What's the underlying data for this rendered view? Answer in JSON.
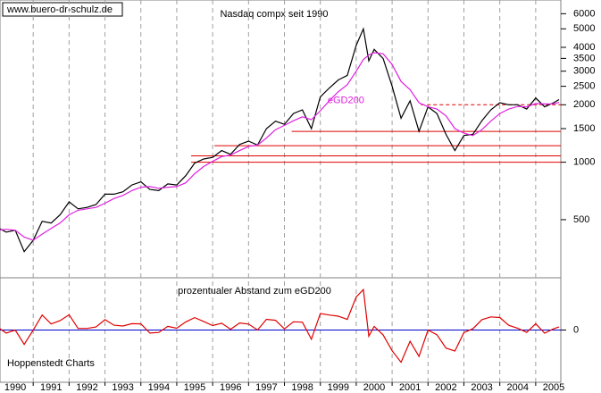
{
  "chart_data": [
    {
      "type": "line",
      "title": "Nasdaq compx seit 1990",
      "source": "www.buero-dr-schulz.de",
      "log_scale": true,
      "grid": true,
      "xlim": [
        1990.075,
        2005.7
      ],
      "ylim": [
        248,
        7080
      ],
      "yticks": [
        500,
        1000,
        1500,
        2000,
        2500,
        3000,
        3500,
        4000,
        5000,
        6000
      ],
      "x": [
        1990,
        1990.25,
        1990.5,
        1990.75,
        1991,
        1991.25,
        1991.5,
        1991.75,
        1992,
        1992.25,
        1992.5,
        1992.75,
        1993,
        1993.25,
        1993.5,
        1993.75,
        1994,
        1994.25,
        1994.5,
        1994.75,
        1995,
        1995.25,
        1995.5,
        1995.75,
        1996,
        1996.25,
        1996.5,
        1996.75,
        1997,
        1997.25,
        1997.5,
        1997.75,
        1998,
        1998.25,
        1998.5,
        1998.75,
        1999,
        1999.25,
        1999.5,
        1999.75,
        2000,
        2000.2,
        2000.35,
        2000.5,
        2000.75,
        2001,
        2001.25,
        2001.5,
        2001.75,
        2002,
        2002.25,
        2002.5,
        2002.75,
        2003,
        2003.25,
        2003.5,
        2003.75,
        2004,
        2004.25,
        2004.5,
        2004.75,
        2005,
        2005.25,
        2005.5,
        2005.65
      ],
      "series": [
        {
          "color": "#000000",
          "values": [
            455,
            430,
            440,
            340,
            390,
            490,
            480,
            530,
            620,
            570,
            580,
            600,
            680,
            680,
            700,
            760,
            790,
            720,
            710,
            770,
            760,
            850,
            990,
            1040,
            1060,
            1150,
            1100,
            1240,
            1290,
            1230,
            1500,
            1640,
            1580,
            1800,
            1880,
            1500,
            2200,
            2450,
            2700,
            2850,
            4100,
            5000,
            3400,
            3900,
            3500,
            2500,
            1700,
            2100,
            1450,
            1950,
            1800,
            1400,
            1150,
            1380,
            1400,
            1650,
            1880,
            2050,
            2000,
            2000,
            1900,
            2170,
            1950,
            2050,
            2130
          ]
        },
        {
          "name": "eGD200",
          "color": "#e020e0",
          "values": [
            440,
            445,
            440,
            405,
            390,
            420,
            450,
            480,
            530,
            560,
            570,
            580,
            610,
            645,
            670,
            710,
            740,
            745,
            730,
            740,
            745,
            780,
            870,
            950,
            1010,
            1070,
            1090,
            1150,
            1210,
            1230,
            1340,
            1480,
            1560,
            1650,
            1730,
            1670,
            1860,
            2100,
            2340,
            2550,
            3000,
            3450,
            3650,
            3750,
            3700,
            3250,
            2650,
            2400,
            2050,
            1950,
            1900,
            1750,
            1500,
            1420,
            1380,
            1480,
            1640,
            1800,
            1900,
            1960,
            1950,
            2030,
            2020,
            2020,
            2060
          ]
        }
      ],
      "hlines": [
        {
          "value": 2000,
          "from": 2001.8,
          "dashed": true,
          "color": "#e00000"
        },
        {
          "value": 1450,
          "from": 1998.2,
          "dashed": false,
          "color": "#e00000"
        },
        {
          "value": 1220,
          "from": 1996.05,
          "dashed": false,
          "color": "#e00000"
        },
        {
          "value": 1080,
          "from": 1995.4,
          "dashed": false,
          "color": "#e00000"
        },
        {
          "value": 1000,
          "from": 1995.4,
          "dashed": false,
          "color": "#e00000"
        }
      ]
    },
    {
      "type": "line",
      "title": "prozentualer Abstand zum eGD200",
      "credit": "Hoppenstedt Charts",
      "xlim": [
        1990.075,
        2005.7
      ],
      "xticks": [
        1990,
        1991,
        1992,
        1993,
        1994,
        1995,
        1996,
        1997,
        1998,
        1999,
        2000,
        2001,
        2002,
        2003,
        2004,
        2005
      ],
      "ylim": [
        -58,
        58
      ],
      "yticks": [
        0
      ],
      "zero_color": "#0000cc",
      "x": [
        1990,
        1990.25,
        1990.5,
        1990.75,
        1991,
        1991.25,
        1991.5,
        1991.75,
        1992,
        1992.25,
        1992.5,
        1992.75,
        1993,
        1993.25,
        1993.5,
        1993.75,
        1994,
        1994.25,
        1994.5,
        1994.75,
        1995,
        1995.25,
        1995.5,
        1995.75,
        1996,
        1996.25,
        1996.5,
        1996.75,
        1997,
        1997.25,
        1997.5,
        1997.75,
        1998,
        1998.25,
        1998.5,
        1998.75,
        1999,
        1999.25,
        1999.5,
        1999.75,
        2000,
        2000.2,
        2000.35,
        2000.5,
        2000.75,
        2001,
        2001.25,
        2001.5,
        2001.75,
        2002,
        2002.25,
        2002.5,
        2002.75,
        2003,
        2003.25,
        2003.5,
        2003.75,
        2004,
        2004.25,
        2004.5,
        2004.75,
        2005,
        2005.25,
        2005.5,
        2005.65
      ],
      "series": [
        {
          "color": "#e00000",
          "values": [
            3.4,
            -3.4,
            0,
            -16,
            0,
            16.7,
            6.7,
            10.4,
            17,
            1.8,
            1.8,
            3.4,
            11.5,
            5.4,
            4.5,
            7,
            6.8,
            -3.4,
            -2.7,
            4.1,
            2,
            9,
            13.8,
            9.5,
            5,
            7.5,
            0.9,
            7.8,
            6.6,
            0,
            11.9,
            10.8,
            1.3,
            9.1,
            8.7,
            -10.2,
            18.3,
            16.7,
            15.4,
            11.8,
            36.7,
            44.9,
            -6.8,
            4,
            -5.4,
            -23,
            -35.8,
            -12.5,
            -29.3,
            0,
            -5.3,
            -20,
            -23.3,
            -2.8,
            1.4,
            11.5,
            14.6,
            13.9,
            5.3,
            2,
            -2.6,
            6.9,
            -3.5,
            1.5,
            3.4
          ]
        }
      ]
    }
  ]
}
